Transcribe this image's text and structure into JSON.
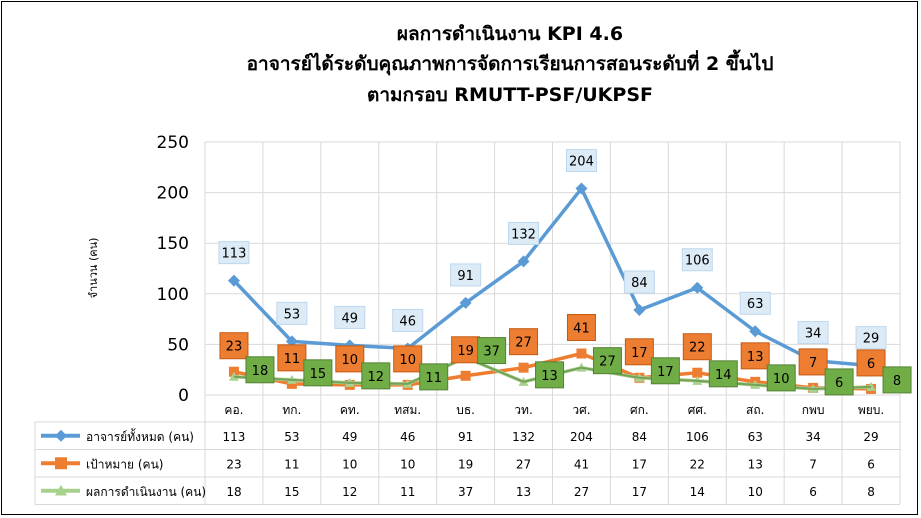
{
  "chart_data": {
    "type": "line",
    "title_lines": [
      "ผลการดำเนินงาน  KPI 4.6",
      "อาจารย์ได้ระดับคุณภาพการจัดการเรียนการสอนระดับที่  2 ขึ้นไป",
      "ตามกรอบ  RMUTT-PSF/UKPSF"
    ],
    "ylabel": "จำนวน (คน)",
    "ylim": [
      0,
      250
    ],
    "yticks": [
      "0",
      "50",
      "100",
      "150",
      "200",
      "250"
    ],
    "grid": true,
    "legend_placement": "data-table",
    "categories": [
      "คอ.",
      "ทก.",
      "คท.",
      "ทสม.",
      "บธ.",
      "วท.",
      "วศ.",
      "ศก.",
      "ศศ.",
      "สถ.",
      "กพบ",
      "พยบ."
    ],
    "series": [
      {
        "name": "อาจารย์ทั้งหมด (คน)",
        "color": "#5B9BD5",
        "marker": "diamond",
        "values": [
          113,
          53,
          49,
          46,
          91,
          132,
          204,
          84,
          106,
          63,
          34,
          29
        ]
      },
      {
        "name": "เป้าหมาย (คน)",
        "color": "#ED7D31",
        "marker": "square",
        "values": [
          23,
          11,
          10,
          10,
          19,
          27,
          41,
          17,
          22,
          13,
          7,
          6
        ]
      },
      {
        "name": "ผลการดำเนินงาน (คน)",
        "color": "#A9D18E",
        "marker": "triangle",
        "values": [
          18,
          15,
          12,
          11,
          37,
          13,
          27,
          17,
          14,
          10,
          6,
          8
        ]
      }
    ]
  }
}
